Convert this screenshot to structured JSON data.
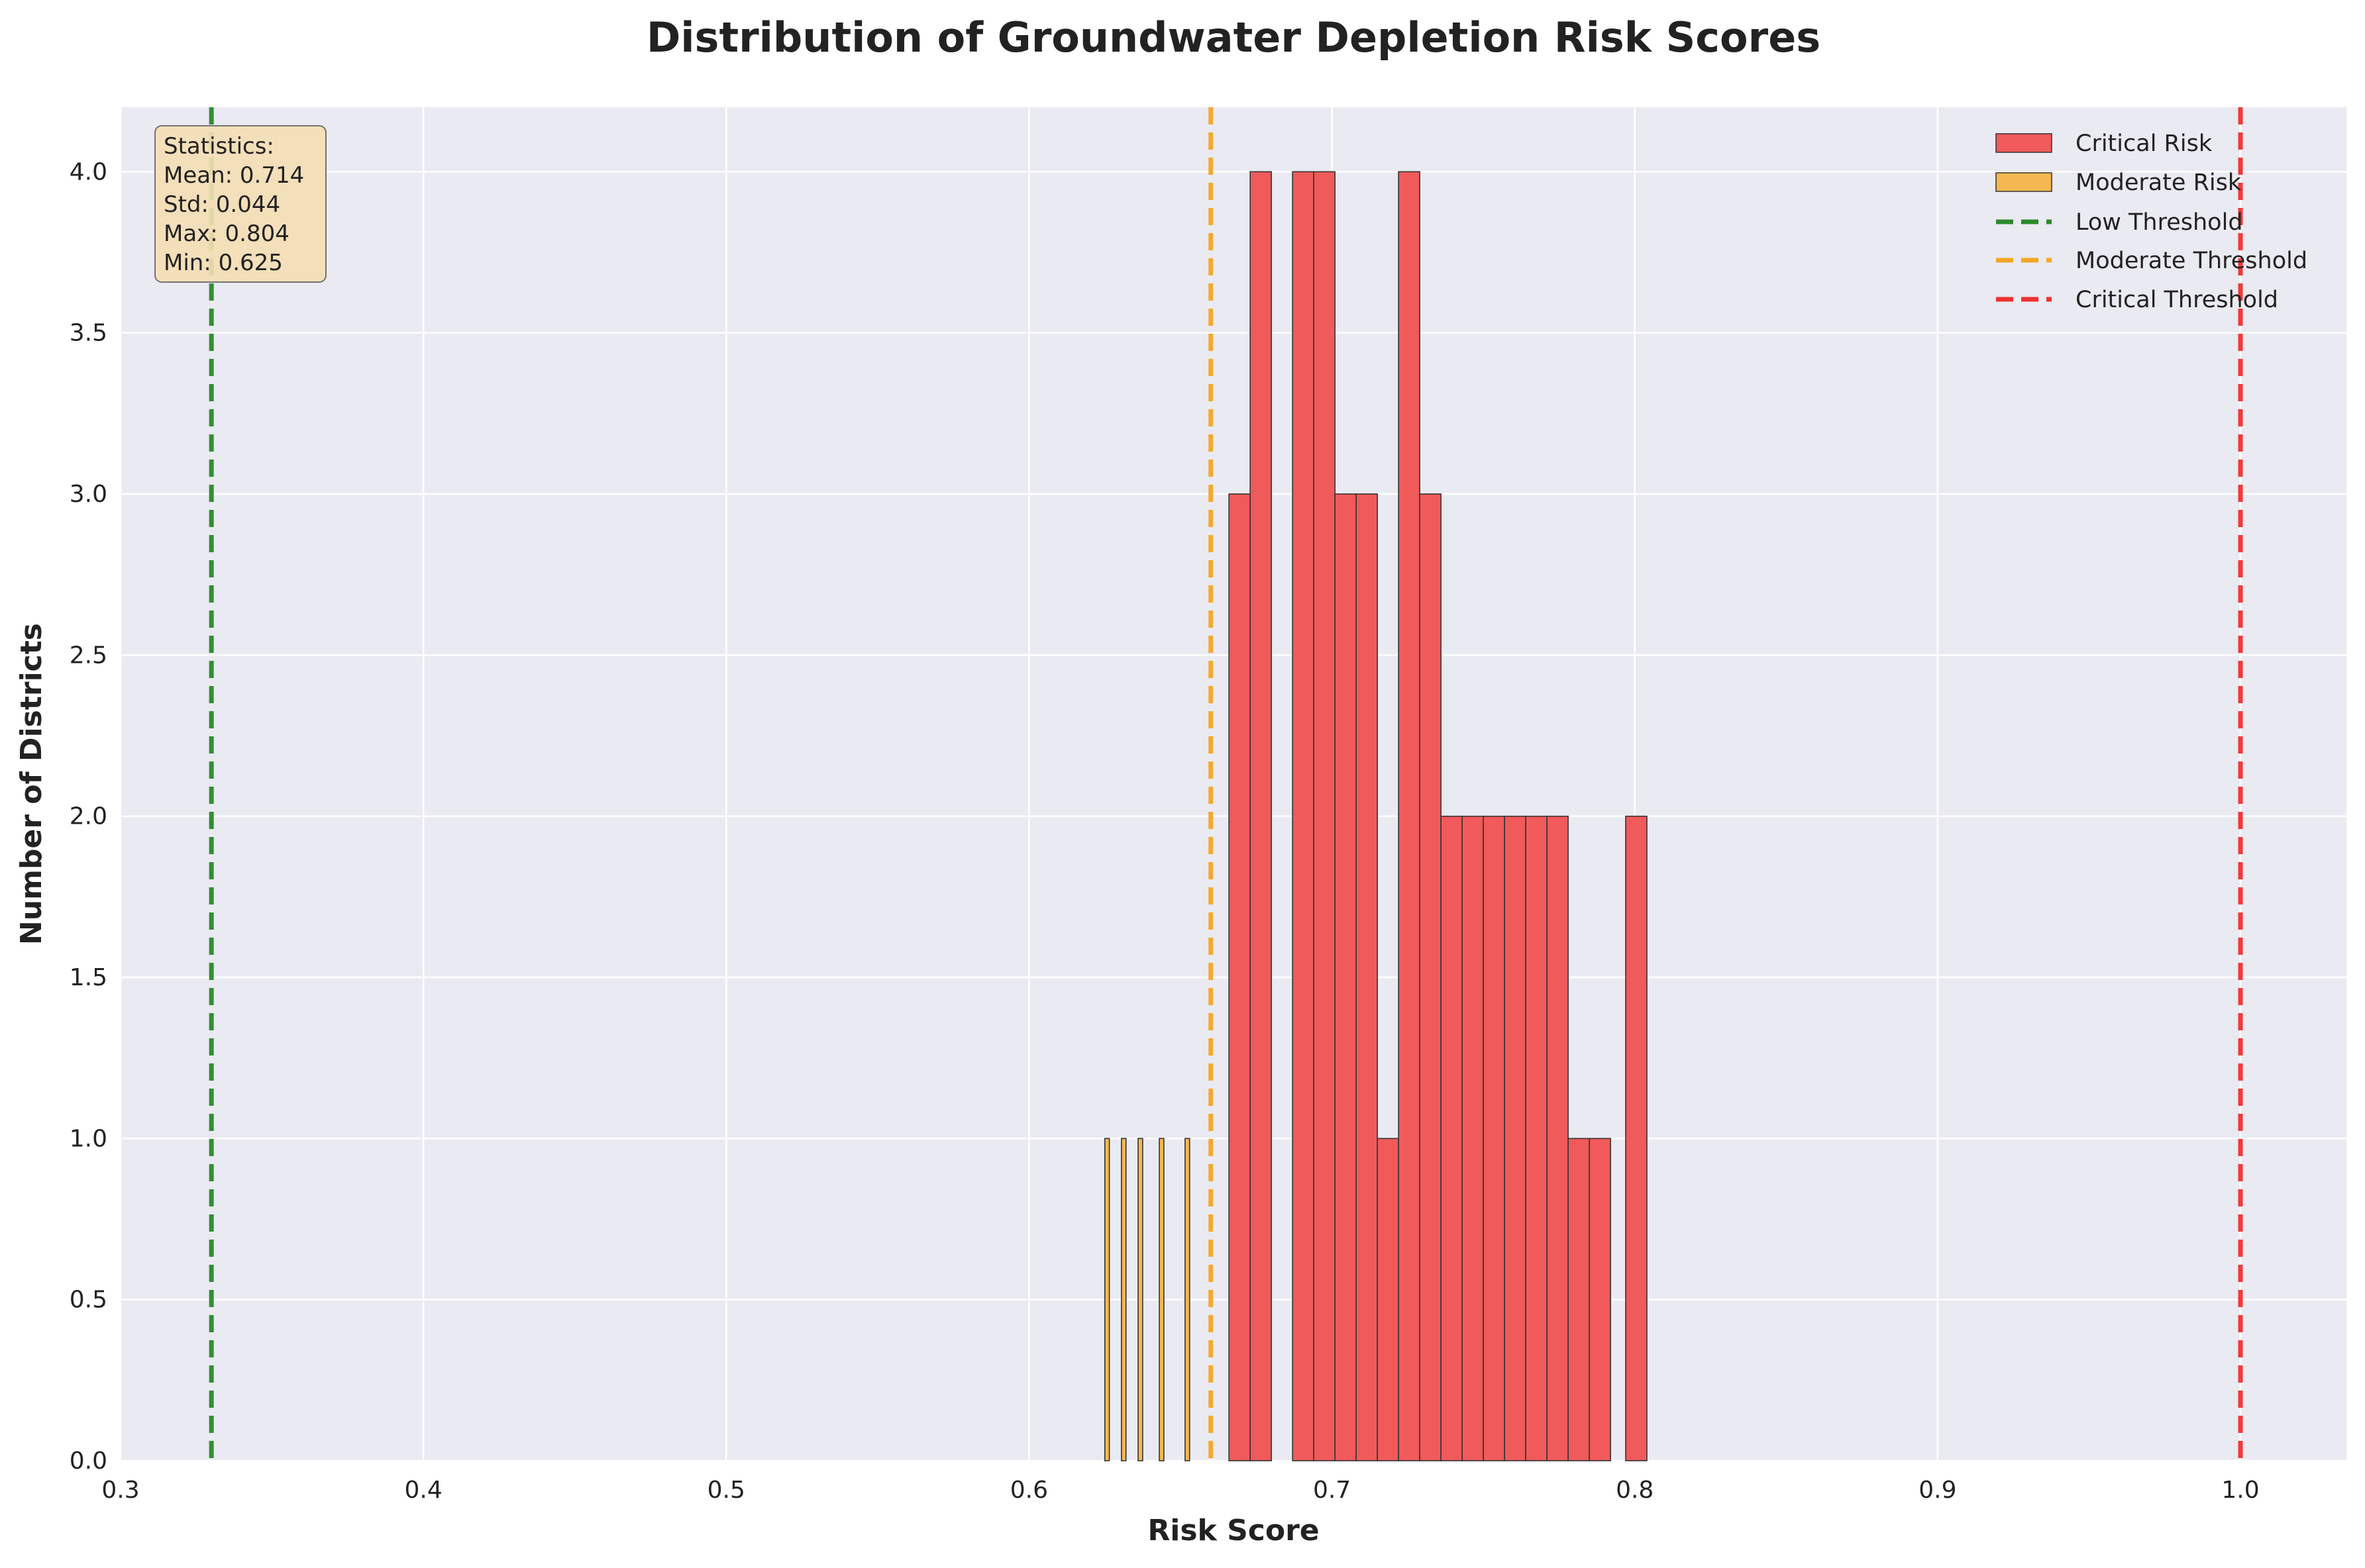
{
  "chart_data": {
    "type": "bar",
    "title": "Distribution of Groundwater Depletion Risk Scores",
    "xlabel": "Risk Score",
    "ylabel": "Number of Districts",
    "xlim": [
      0.3,
      1.035
    ],
    "ylim": [
      0,
      4.2
    ],
    "xticks": [
      0.3,
      0.4,
      0.5,
      0.6,
      0.7,
      0.8,
      0.9,
      1.0
    ],
    "xtick_labels": [
      "0.3",
      "0.4",
      "0.5",
      "0.6",
      "0.7",
      "0.8",
      "0.9",
      "1.0"
    ],
    "yticks": [
      0,
      0.5,
      1,
      1.5,
      2,
      2.5,
      3,
      3.5,
      4
    ],
    "ytick_labels": [
      "0.0",
      "0.5",
      "1.0",
      "1.5",
      "2.0",
      "2.5",
      "3.0",
      "3.5",
      "4.0"
    ],
    "grid": true,
    "legend_position": "top-right",
    "series": [
      {
        "name": "Critical Risk",
        "color": "#f05a5a",
        "bins": [
          {
            "x0": 0.666,
            "x1": 0.673,
            "count": 3
          },
          {
            "x0": 0.673,
            "x1": 0.68,
            "count": 4
          },
          {
            "x0": 0.68,
            "x1": 0.687,
            "count": 0
          },
          {
            "x0": 0.687,
            "x1": 0.694,
            "count": 4
          },
          {
            "x0": 0.694,
            "x1": 0.701,
            "count": 4
          },
          {
            "x0": 0.701,
            "x1": 0.708,
            "count": 3
          },
          {
            "x0": 0.708,
            "x1": 0.715,
            "count": 3
          },
          {
            "x0": 0.715,
            "x1": 0.722,
            "count": 1
          },
          {
            "x0": 0.722,
            "x1": 0.729,
            "count": 4
          },
          {
            "x0": 0.729,
            "x1": 0.736,
            "count": 3
          },
          {
            "x0": 0.736,
            "x1": 0.743,
            "count": 2
          },
          {
            "x0": 0.743,
            "x1": 0.75,
            "count": 2
          },
          {
            "x0": 0.75,
            "x1": 0.757,
            "count": 2
          },
          {
            "x0": 0.757,
            "x1": 0.764,
            "count": 2
          },
          {
            "x0": 0.764,
            "x1": 0.771,
            "count": 2
          },
          {
            "x0": 0.771,
            "x1": 0.778,
            "count": 2
          },
          {
            "x0": 0.778,
            "x1": 0.785,
            "count": 1
          },
          {
            "x0": 0.785,
            "x1": 0.792,
            "count": 1
          },
          {
            "x0": 0.792,
            "x1": 0.797,
            "count": 0
          },
          {
            "x0": 0.797,
            "x1": 0.804,
            "count": 2
          }
        ]
      },
      {
        "name": "Moderate Risk",
        "color": "#f5b850",
        "bins": [
          {
            "x0": 0.625,
            "x1": 0.6265,
            "count": 1
          },
          {
            "x0": 0.6305,
            "x1": 0.632,
            "count": 1
          },
          {
            "x0": 0.636,
            "x1": 0.6375,
            "count": 1
          },
          {
            "x0": 0.643,
            "x1": 0.6445,
            "count": 1
          },
          {
            "x0": 0.6515,
            "x1": 0.653,
            "count": 1
          }
        ]
      }
    ],
    "thresholds": [
      {
        "name": "Low Threshold",
        "x": 0.33,
        "color": "#2a8a2a"
      },
      {
        "name": "Moderate Threshold",
        "x": 0.66,
        "color": "#f5a623"
      },
      {
        "name": "Critical Threshold",
        "x": 1.0,
        "color": "#f03030"
      }
    ],
    "stats_box": {
      "lines": [
        "Statistics:",
        "Mean: 0.714",
        "Std: 0.044",
        "Max: 0.804",
        "Min: 0.625"
      ],
      "bg_color": "#f5deb3"
    },
    "background_color": "#eaeaf2"
  }
}
